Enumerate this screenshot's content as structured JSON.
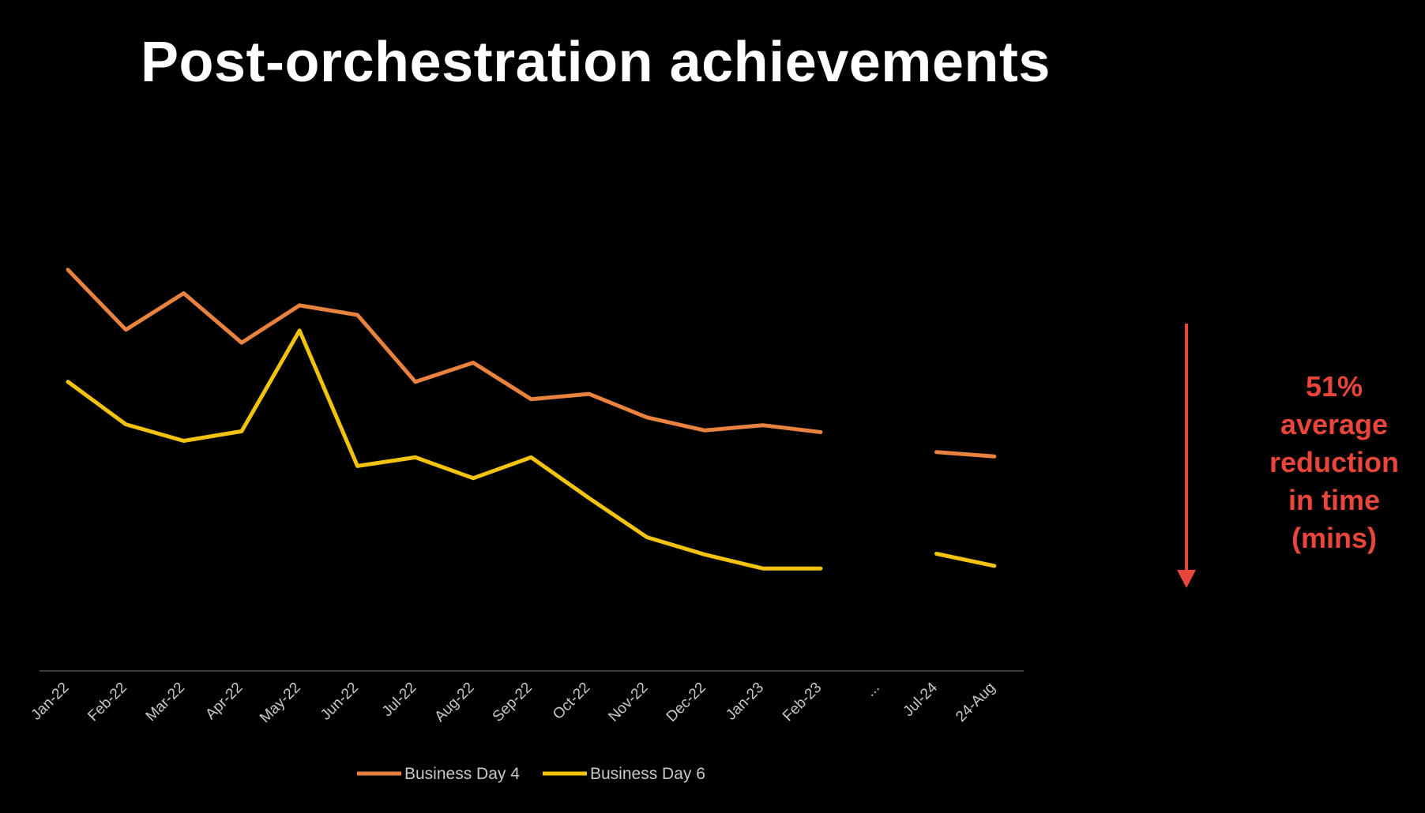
{
  "title": "Post-orchestration achievements",
  "annotation": {
    "lines": [
      "51%",
      "average",
      "reduction",
      "in time",
      "(mins)"
    ],
    "color": "#e8463a"
  },
  "chart_data": {
    "type": "line",
    "title": "Post-orchestration achievements",
    "categories": [
      "Jan-22",
      "Feb-22",
      "Mar-22",
      "Apr-22",
      "May-22",
      "Jun-22",
      "Jul-22",
      "Aug-22",
      "Sep-22",
      "Oct-22",
      "Nov-22",
      "Dec-22",
      "Jan-23",
      "Feb-23",
      "...",
      "Jul-24",
      "24-Aug"
    ],
    "series": [
      {
        "name": "Business Day 4",
        "color": "#e8823e",
        "values": [
          462,
          393,
          435,
          378,
          421,
          410,
          333,
          355,
          313,
          319,
          292,
          277,
          283,
          275,
          null,
          252,
          247
        ]
      },
      {
        "name": "Business Day 6",
        "color": "#f2c20c",
        "values": [
          333,
          284,
          265,
          276,
          392,
          236,
          246,
          222,
          246,
          199,
          154,
          134,
          118,
          118,
          null,
          135,
          121
        ]
      }
    ],
    "ylim": [
      0,
      500
    ],
    "grid": false,
    "legend": "bottom-center"
  }
}
